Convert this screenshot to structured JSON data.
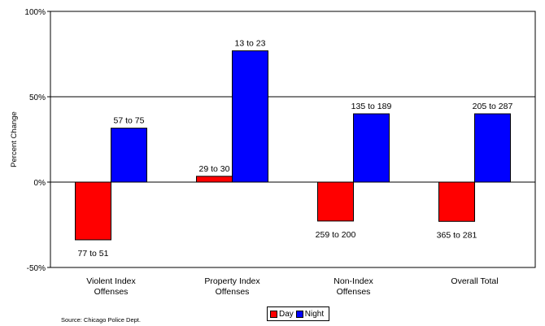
{
  "chart_data": {
    "type": "bar",
    "ylabel": "Percent Change",
    "ylim": [
      -50,
      100
    ],
    "yticks": [
      {
        "value": 100,
        "label": "100%"
      },
      {
        "value": 50,
        "label": "50%"
      },
      {
        "value": 0,
        "label": "0%"
      },
      {
        "value": -50,
        "label": "-50%"
      }
    ],
    "categories": [
      [
        "Violent Index",
        "Offenses"
      ],
      [
        "Property Index",
        "Offenses"
      ],
      [
        "Non-Index",
        "Offenses"
      ],
      [
        "Overall Total"
      ]
    ],
    "series": [
      {
        "name": "Day",
        "color": "#ff0000",
        "values": [
          -33.8,
          3.4,
          -22.8,
          -23.0
        ],
        "labels": [
          "77 to 51",
          "29 to 30",
          "259 to 200",
          "365 to 281"
        ]
      },
      {
        "name": "Night",
        "color": "#0000ff",
        "values": [
          31.6,
          76.9,
          40.0,
          40.0
        ],
        "labels": [
          "57 to 75",
          "13 to 23",
          "135 to 189",
          "205 to 287"
        ]
      }
    ],
    "gridlines": [
      50
    ],
    "legend": "bottom-center"
  },
  "source": "Source: Chicago Police Dept."
}
